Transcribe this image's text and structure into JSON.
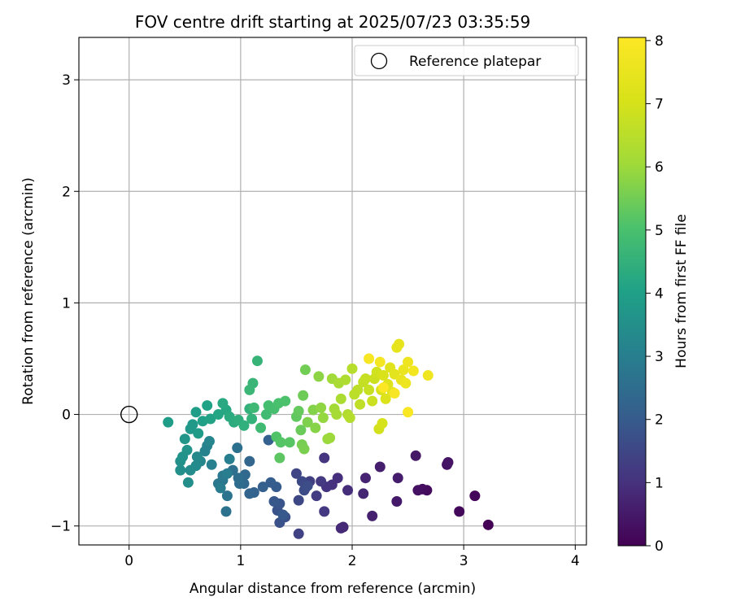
{
  "chart_data": {
    "type": "scatter",
    "title": "FOV centre drift starting at 2025/07/23 03:35:59",
    "xlabel": "Angular distance from reference (arcmin)",
    "ylabel": "Rotation from reference (arcmin)",
    "xlim": [
      -0.45,
      4.1
    ],
    "ylim": [
      -1.17,
      3.38
    ],
    "xticks": [
      0,
      1,
      2,
      3,
      4
    ],
    "xtick_labels": [
      "0",
      "1",
      "2",
      "3",
      "4"
    ],
    "yticks": [
      -1,
      0,
      1,
      2,
      3
    ],
    "ytick_labels": [
      "−1",
      "0",
      "1",
      "2",
      "3"
    ],
    "grid": true,
    "legend": {
      "placement": "top-right",
      "entries": [
        "Reference platepar"
      ]
    },
    "reference_point": {
      "x": 0,
      "y": 0,
      "label": "Reference platepar"
    },
    "colorbar": {
      "label": "Hours from first FF file",
      "min": 0,
      "max": 8.05,
      "ticks": [
        0,
        1,
        2,
        3,
        4,
        5,
        6,
        7,
        8
      ],
      "tick_labels": [
        "0",
        "1",
        "2",
        "3",
        "4",
        "5",
        "6",
        "7",
        "8"
      ],
      "colormap": "viridis"
    },
    "points": [
      {
        "x": 3.22,
        "y": -0.99,
        "h": 0.05
      },
      {
        "x": 3.1,
        "y": -0.73,
        "h": 0.1
      },
      {
        "x": 2.96,
        "y": -0.87,
        "h": 0.15
      },
      {
        "x": 2.67,
        "y": -0.68,
        "h": 0.2
      },
      {
        "x": 2.63,
        "y": -0.67,
        "h": 0.25
      },
      {
        "x": 2.59,
        "y": -0.68,
        "h": 0.3
      },
      {
        "x": 2.85,
        "y": -0.45,
        "h": 0.35
      },
      {
        "x": 2.86,
        "y": -0.43,
        "h": 0.4
      },
      {
        "x": 2.57,
        "y": -0.37,
        "h": 0.45
      },
      {
        "x": 2.4,
        "y": -0.78,
        "h": 0.5
      },
      {
        "x": 2.41,
        "y": -0.57,
        "h": 0.55
      },
      {
        "x": 2.25,
        "y": -0.47,
        "h": 0.6
      },
      {
        "x": 2.18,
        "y": -0.91,
        "h": 0.65
      },
      {
        "x": 2.12,
        "y": -0.57,
        "h": 0.7
      },
      {
        "x": 2.1,
        "y": -0.71,
        "h": 0.75
      },
      {
        "x": 1.92,
        "y": -1.01,
        "h": 0.8
      },
      {
        "x": 1.9,
        "y": -1.02,
        "h": 0.85
      },
      {
        "x": 1.96,
        "y": -0.68,
        "h": 0.9
      },
      {
        "x": 1.87,
        "y": -0.57,
        "h": 0.95
      },
      {
        "x": 1.82,
        "y": -0.63,
        "h": 1.0
      },
      {
        "x": 1.77,
        "y": -0.65,
        "h": 1.05
      },
      {
        "x": 1.75,
        "y": -0.39,
        "h": 1.1
      },
      {
        "x": 1.75,
        "y": -0.87,
        "h": 1.15
      },
      {
        "x": 1.72,
        "y": -0.6,
        "h": 1.2
      },
      {
        "x": 1.68,
        "y": -0.73,
        "h": 1.25
      },
      {
        "x": 1.62,
        "y": -0.6,
        "h": 1.3
      },
      {
        "x": 1.58,
        "y": -0.66,
        "h": 1.35
      },
      {
        "x": 1.52,
        "y": -1.07,
        "h": 1.4
      },
      {
        "x": 1.5,
        "y": -0.53,
        "h": 1.45
      },
      {
        "x": 1.52,
        "y": -0.77,
        "h": 1.5
      },
      {
        "x": 1.55,
        "y": -0.6,
        "h": 1.55
      },
      {
        "x": 1.57,
        "y": -0.68,
        "h": 1.6
      },
      {
        "x": 1.6,
        "y": -0.64,
        "h": 1.65
      },
      {
        "x": 1.4,
        "y": -0.92,
        "h": 1.7
      },
      {
        "x": 1.35,
        "y": -0.97,
        "h": 1.75
      },
      {
        "x": 1.33,
        "y": -0.86,
        "h": 1.8
      },
      {
        "x": 1.35,
        "y": -0.8,
        "h": 1.85
      },
      {
        "x": 1.3,
        "y": -0.78,
        "h": 1.9
      },
      {
        "x": 1.38,
        "y": -0.9,
        "h": 1.95
      },
      {
        "x": 1.32,
        "y": -0.65,
        "h": 2.0
      },
      {
        "x": 1.27,
        "y": -0.61,
        "h": 2.05
      },
      {
        "x": 1.2,
        "y": -0.65,
        "h": 2.1
      },
      {
        "x": 1.25,
        "y": -0.23,
        "h": 2.15
      },
      {
        "x": 1.12,
        "y": -0.7,
        "h": 2.2
      },
      {
        "x": 1.08,
        "y": -0.71,
        "h": 2.25
      },
      {
        "x": 1.08,
        "y": -0.42,
        "h": 2.3
      },
      {
        "x": 1.03,
        "y": -0.62,
        "h": 2.35
      },
      {
        "x": 1.04,
        "y": -0.54,
        "h": 2.4
      },
      {
        "x": 0.99,
        "y": -0.62,
        "h": 2.45
      },
      {
        "x": 0.98,
        "y": -0.57,
        "h": 2.5
      },
      {
        "x": 0.93,
        "y": -0.5,
        "h": 2.55
      },
      {
        "x": 0.97,
        "y": -0.3,
        "h": 2.6
      },
      {
        "x": 0.87,
        "y": -0.87,
        "h": 2.65
      },
      {
        "x": 0.88,
        "y": -0.73,
        "h": 2.7
      },
      {
        "x": 0.84,
        "y": -0.59,
        "h": 2.75
      },
      {
        "x": 0.8,
        "y": -0.62,
        "h": 2.8
      },
      {
        "x": 0.84,
        "y": -0.55,
        "h": 2.85
      },
      {
        "x": 0.82,
        "y": -0.66,
        "h": 2.9
      },
      {
        "x": 0.88,
        "y": -0.53,
        "h": 2.95
      },
      {
        "x": 0.9,
        "y": -0.4,
        "h": 3.0
      },
      {
        "x": 0.74,
        "y": -0.45,
        "h": 3.05
      },
      {
        "x": 0.68,
        "y": -0.33,
        "h": 3.1
      },
      {
        "x": 0.7,
        "y": -0.28,
        "h": 3.15
      },
      {
        "x": 0.72,
        "y": -0.24,
        "h": 3.2
      },
      {
        "x": 0.64,
        "y": -0.42,
        "h": 3.25
      },
      {
        "x": 0.61,
        "y": -0.38,
        "h": 3.3
      },
      {
        "x": 0.6,
        "y": -0.46,
        "h": 3.35
      },
      {
        "x": 0.55,
        "y": -0.5,
        "h": 3.4
      },
      {
        "x": 0.53,
        "y": -0.61,
        "h": 3.45
      },
      {
        "x": 0.46,
        "y": -0.5,
        "h": 3.5
      },
      {
        "x": 0.46,
        "y": -0.42,
        "h": 3.55
      },
      {
        "x": 0.48,
        "y": -0.38,
        "h": 3.6
      },
      {
        "x": 0.52,
        "y": -0.32,
        "h": 3.65
      },
      {
        "x": 0.5,
        "y": -0.22,
        "h": 3.7
      },
      {
        "x": 0.55,
        "y": -0.13,
        "h": 3.75
      },
      {
        "x": 0.57,
        "y": -0.09,
        "h": 3.8
      },
      {
        "x": 0.62,
        "y": -0.17,
        "h": 3.85
      },
      {
        "x": 0.35,
        "y": -0.07,
        "h": 3.9
      },
      {
        "x": 0.6,
        "y": 0.02,
        "h": 3.95
      },
      {
        "x": 0.66,
        "y": -0.06,
        "h": 4.0
      },
      {
        "x": 0.7,
        "y": 0.08,
        "h": 4.05
      },
      {
        "x": 0.73,
        "y": -0.04,
        "h": 4.1
      },
      {
        "x": 0.8,
        "y": 0.0,
        "h": 4.15
      },
      {
        "x": 0.87,
        "y": 0.04,
        "h": 4.2
      },
      {
        "x": 0.84,
        "y": 0.1,
        "h": 4.25
      },
      {
        "x": 0.9,
        "y": -0.02,
        "h": 4.3
      },
      {
        "x": 0.94,
        "y": -0.07,
        "h": 4.35
      },
      {
        "x": 0.98,
        "y": -0.05,
        "h": 4.4
      },
      {
        "x": 1.03,
        "y": -0.1,
        "h": 4.45
      },
      {
        "x": 1.08,
        "y": 0.05,
        "h": 4.5
      },
      {
        "x": 1.1,
        "y": -0.04,
        "h": 4.55
      },
      {
        "x": 1.15,
        "y": 0.48,
        "h": 4.6
      },
      {
        "x": 1.11,
        "y": 0.28,
        "h": 4.65
      },
      {
        "x": 1.08,
        "y": 0.22,
        "h": 4.7
      },
      {
        "x": 1.12,
        "y": 0.06,
        "h": 4.75
      },
      {
        "x": 1.18,
        "y": -0.12,
        "h": 4.8
      },
      {
        "x": 1.23,
        "y": 0.0,
        "h": 4.85
      },
      {
        "x": 1.25,
        "y": 0.08,
        "h": 4.9
      },
      {
        "x": 1.3,
        "y": 0.05,
        "h": 4.95
      },
      {
        "x": 1.34,
        "y": 0.1,
        "h": 5.0
      },
      {
        "x": 1.4,
        "y": 0.12,
        "h": 5.05
      },
      {
        "x": 1.32,
        "y": -0.2,
        "h": 5.1
      },
      {
        "x": 1.36,
        "y": -0.25,
        "h": 5.15
      },
      {
        "x": 1.44,
        "y": -0.25,
        "h": 5.2
      },
      {
        "x": 1.35,
        "y": -0.39,
        "h": 5.25
      },
      {
        "x": 1.5,
        "y": -0.02,
        "h": 5.3
      },
      {
        "x": 1.52,
        "y": 0.03,
        "h": 5.35
      },
      {
        "x": 1.54,
        "y": -0.14,
        "h": 5.4
      },
      {
        "x": 1.56,
        "y": 0.17,
        "h": 5.45
      },
      {
        "x": 1.58,
        "y": 0.4,
        "h": 5.5
      },
      {
        "x": 1.55,
        "y": -0.27,
        "h": 5.55
      },
      {
        "x": 1.57,
        "y": -0.31,
        "h": 5.6
      },
      {
        "x": 1.6,
        "y": -0.07,
        "h": 5.65
      },
      {
        "x": 1.65,
        "y": 0.04,
        "h": 5.7
      },
      {
        "x": 1.67,
        "y": -0.12,
        "h": 5.75
      },
      {
        "x": 1.7,
        "y": 0.34,
        "h": 5.8
      },
      {
        "x": 1.72,
        "y": 0.06,
        "h": 5.85
      },
      {
        "x": 1.74,
        "y": -0.03,
        "h": 5.9
      },
      {
        "x": 1.78,
        "y": -0.22,
        "h": 5.95
      },
      {
        "x": 1.8,
        "y": -0.21,
        "h": 6.0
      },
      {
        "x": 1.82,
        "y": 0.32,
        "h": 6.05
      },
      {
        "x": 1.84,
        "y": 0.05,
        "h": 6.1
      },
      {
        "x": 1.86,
        "y": 0.0,
        "h": 6.15
      },
      {
        "x": 1.88,
        "y": 0.28,
        "h": 6.2
      },
      {
        "x": 1.9,
        "y": 0.14,
        "h": 6.25
      },
      {
        "x": 1.94,
        "y": 0.31,
        "h": 6.3
      },
      {
        "x": 1.96,
        "y": 0.0,
        "h": 6.35
      },
      {
        "x": 1.98,
        "y": -0.03,
        "h": 6.4
      },
      {
        "x": 2.0,
        "y": 0.41,
        "h": 6.45
      },
      {
        "x": 2.02,
        "y": 0.18,
        "h": 6.5
      },
      {
        "x": 2.05,
        "y": 0.22,
        "h": 6.55
      },
      {
        "x": 2.07,
        "y": 0.09,
        "h": 6.6
      },
      {
        "x": 2.1,
        "y": 0.29,
        "h": 6.65
      },
      {
        "x": 2.12,
        "y": 0.32,
        "h": 6.7
      },
      {
        "x": 2.15,
        "y": 0.22,
        "h": 6.75
      },
      {
        "x": 2.18,
        "y": 0.12,
        "h": 6.8
      },
      {
        "x": 2.2,
        "y": 0.32,
        "h": 6.85
      },
      {
        "x": 2.22,
        "y": 0.38,
        "h": 6.9
      },
      {
        "x": 2.24,
        "y": -0.13,
        "h": 6.95
      },
      {
        "x": 2.27,
        "y": -0.08,
        "h": 7.0
      },
      {
        "x": 2.26,
        "y": 0.22,
        "h": 7.05
      },
      {
        "x": 2.28,
        "y": 0.35,
        "h": 7.1
      },
      {
        "x": 2.3,
        "y": 0.14,
        "h": 7.15
      },
      {
        "x": 2.32,
        "y": 0.27,
        "h": 7.2
      },
      {
        "x": 2.34,
        "y": 0.42,
        "h": 7.25
      },
      {
        "x": 2.36,
        "y": 0.2,
        "h": 7.3
      },
      {
        "x": 2.38,
        "y": 0.36,
        "h": 7.35
      },
      {
        "x": 2.4,
        "y": 0.6,
        "h": 7.4
      },
      {
        "x": 2.42,
        "y": 0.63,
        "h": 7.45
      },
      {
        "x": 2.44,
        "y": 0.31,
        "h": 7.5
      },
      {
        "x": 2.46,
        "y": 0.4,
        "h": 7.55
      },
      {
        "x": 2.48,
        "y": 0.28,
        "h": 7.6
      },
      {
        "x": 2.5,
        "y": 0.47,
        "h": 7.65
      },
      {
        "x": 2.68,
        "y": 0.35,
        "h": 7.7
      },
      {
        "x": 2.55,
        "y": 0.39,
        "h": 7.75
      },
      {
        "x": 2.25,
        "y": 0.47,
        "h": 7.8
      },
      {
        "x": 2.15,
        "y": 0.5,
        "h": 7.85
      },
      {
        "x": 2.38,
        "y": 0.19,
        "h": 7.9
      },
      {
        "x": 2.5,
        "y": 0.02,
        "h": 7.95
      },
      {
        "x": 2.28,
        "y": 0.24,
        "h": 8.0
      }
    ]
  }
}
